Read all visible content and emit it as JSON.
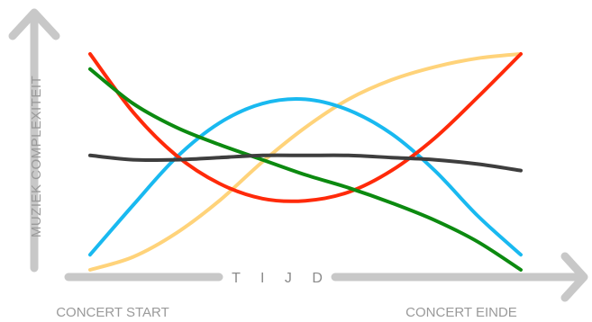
{
  "chart_data": {
    "type": "line",
    "title": "",
    "xlabel": "T I J D",
    "ylabel": "MUZIEK COMPLEXITEIT",
    "x_start_label": "CONCERT  START",
    "x_end_label": "CONCERT EINDE",
    "grid": false,
    "legend": "none",
    "xlim": [
      0,
      1
    ],
    "ylim": [
      0,
      1
    ],
    "series": [
      {
        "color": "#ffd37a",
        "x": [
          0,
          0.1,
          0.2,
          0.3,
          0.4,
          0.5,
          0.6,
          0.7,
          0.8,
          0.9,
          1.0
        ],
        "y": [
          0.0,
          0.06,
          0.17,
          0.32,
          0.5,
          0.66,
          0.79,
          0.88,
          0.94,
          0.98,
          1.0
        ]
      },
      {
        "color": "#19b9f0",
        "x": [
          0,
          0.1,
          0.2,
          0.3,
          0.4,
          0.5,
          0.6,
          0.7,
          0.8,
          0.9,
          1.0
        ],
        "y": [
          0.07,
          0.3,
          0.52,
          0.68,
          0.77,
          0.79,
          0.74,
          0.63,
          0.46,
          0.25,
          0.07
        ]
      },
      {
        "color": "#ff2a0a",
        "x": [
          0,
          0.1,
          0.2,
          0.3,
          0.4,
          0.5,
          0.6,
          0.7,
          0.8,
          0.9,
          1.0
        ],
        "y": [
          1.0,
          0.73,
          0.53,
          0.4,
          0.33,
          0.32,
          0.36,
          0.46,
          0.61,
          0.8,
          1.0
        ]
      },
      {
        "color": "#0c8a10",
        "x": [
          0,
          0.1,
          0.2,
          0.3,
          0.4,
          0.5,
          0.6,
          0.7,
          0.8,
          0.9,
          1.0
        ],
        "y": [
          0.93,
          0.77,
          0.66,
          0.58,
          0.51,
          0.44,
          0.38,
          0.31,
          0.23,
          0.13,
          0.0
        ]
      },
      {
        "color": "#3e3e3e",
        "x": [
          0,
          0.1,
          0.2,
          0.3,
          0.4,
          0.5,
          0.6,
          0.7,
          0.8,
          0.9,
          1.0
        ],
        "y": [
          0.53,
          0.51,
          0.51,
          0.52,
          0.53,
          0.53,
          0.53,
          0.52,
          0.51,
          0.49,
          0.46
        ]
      }
    ]
  },
  "colors": {
    "axis": "#c8c8c8"
  }
}
